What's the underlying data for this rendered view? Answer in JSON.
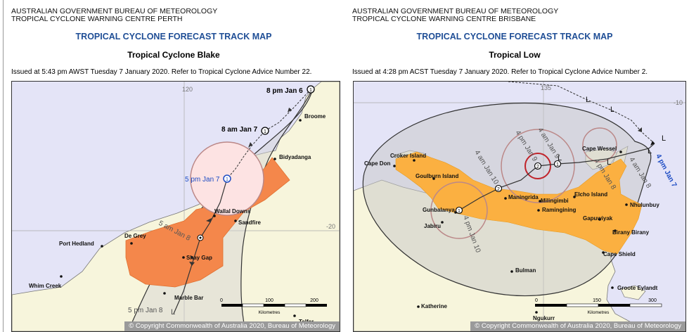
{
  "left": {
    "agency_line1": "AUSTRALIAN GOVERNMENT BUREAU OF METEOROLOGY",
    "agency_line2": "TROPICAL CYCLONE WARNING CENTRE PERTH",
    "title": "TROPICAL CYCLONE FORECAST TRACK MAP",
    "cyclone_name": "Tropical Cyclone Blake",
    "issued": "Issued at 5:43 pm AWST Tuesday 7 January 2020. Refer to Tropical Cyclone Advice Number 22.",
    "longitude_label": "120",
    "latitude_label": "-20",
    "track_labels": [
      "8 pm Jan 6",
      "8 am Jan 7",
      "5 pm Jan 7",
      "5 am Jan 8",
      "5 pm Jan 8"
    ],
    "places": [
      "Broome",
      "Bidyadanga",
      "Wallal Downs",
      "Sandfire",
      "Port Hedland",
      "De Grey",
      "Shay Gap",
      "Whim Creek",
      "Marble Bar",
      "Telfer"
    ],
    "scale": {
      "ticks": [
        "0",
        "100",
        "200"
      ],
      "unit": "Kilometres"
    },
    "copyright": "© Copyright Commonwealth of Australia 2020, Bureau of Meteorology",
    "colors": {
      "sea": "#e4e4f7",
      "land": "#f7f5dc",
      "warning": "#f4874b",
      "current_circle": "#fde3e3",
      "track": "#333333"
    }
  },
  "right": {
    "agency_line1": "AUSTRALIAN GOVERNMENT BUREAU OF METEOROLOGY",
    "agency_line2": "TROPICAL CYCLONE WARNING CENTRE BRISBANE",
    "title": "TROPICAL CYCLONE FORECAST TRACK MAP",
    "cyclone_name": "Tropical Low",
    "issued": "Issued at 4:28 pm ACST Tuesday 7 January 2020. Refer to Tropical Cyclone Advice Number 2.",
    "longitude_label": "135",
    "latitude_label": "-10",
    "track_labels": [
      "4 pm Jan 7",
      "4 am Jan 8",
      "4 pm Jan 8",
      "4 am Jan 9",
      "4 pm Jan 9",
      "4 am Jan 10",
      "4 pm Jan 10"
    ],
    "places": [
      "Croker Island",
      "Cape Don",
      "Goulburn Island",
      "Cape Wessel",
      "Maningrida",
      "Milingimbi",
      "Elcho Island",
      "Ramingining",
      "Nhulunbuy",
      "Gunbalanya",
      "Jabiru",
      "Gapuwiyak",
      "Birany Birany",
      "Cape Shield",
      "Bulman",
      "Groote Eylandt",
      "Katherine",
      "Ngukurr"
    ],
    "scale": {
      "ticks": [
        "0",
        "150",
        "300"
      ],
      "unit": "Kilometres"
    },
    "copyright": "© Copyright Commonwealth of Australia 2020, Bureau of Meteorology",
    "colors": {
      "sea": "#e4e4f7",
      "land": "#f7f5dc",
      "warning": "#fbb041",
      "uncertainty": "#e4e4e4",
      "track": "#333333"
    }
  }
}
